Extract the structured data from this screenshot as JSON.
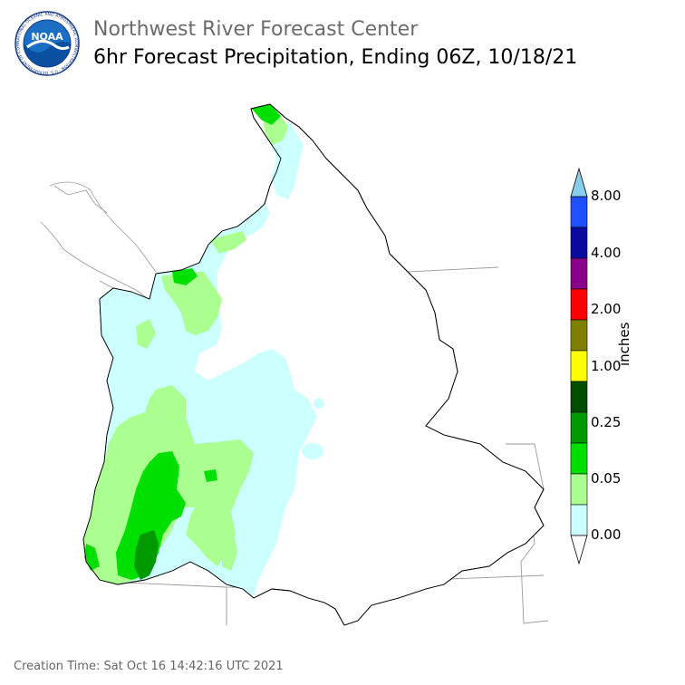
{
  "header": {
    "title": "Northwest River Forecast Center",
    "subtitle": "6hr Forecast Precipitation, Ending 06Z, 10/18/21"
  },
  "logo": {
    "text": "NOAA",
    "ring_text": "NATIONAL OCEANIC AND ATMOSPHERIC ADMINISTRATION · U.S. DEPARTMENT OF COMMERCE"
  },
  "legend": {
    "unit": "inches",
    "labels": [
      "8.00",
      "4.00",
      "2.00",
      "1.00",
      "0.25",
      "0.05",
      "0.00"
    ],
    "colors": [
      "#87CEEB",
      "#1E50FF",
      "#0A0AA0",
      "#8B008B",
      "#FF0000",
      "#808000",
      "#FFFF00",
      "#004D00",
      "#009900",
      "#00E000",
      "#AAFF90",
      "#CCFFFF",
      "#FFFFFF"
    ]
  },
  "footer": {
    "creation_time": "Creation Time: Sat Oct 16 14:42:16 UTC 2021"
  },
  "colors": {
    "light_cyan": "#CCFFFF",
    "light_green": "#AAFF90",
    "green": "#00E000",
    "mid_green": "#009900",
    "border": "#000000"
  }
}
